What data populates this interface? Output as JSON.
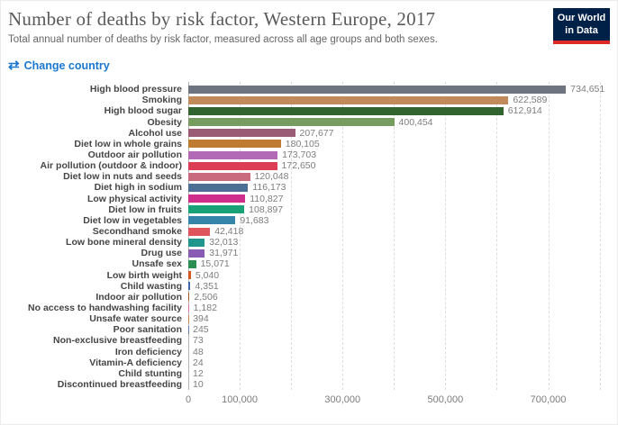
{
  "header": {
    "title": "Number of deaths by risk factor, Western Europe, 2017",
    "subtitle": "Total annual number of deaths by risk factor, measured across all age groups and both sexes.",
    "logo": {
      "line1": "Our World",
      "line2": "in Data",
      "bg_color": "#002147",
      "accent_color": "#dc2a27"
    }
  },
  "controls": {
    "change_country_label": "Change country",
    "swap_icon": "⇄",
    "link_color": "#1b77cf"
  },
  "chart_data": {
    "type": "bar",
    "orientation": "horizontal",
    "title": "Number of deaths by risk factor, Western Europe, 2017",
    "xlabel": "",
    "ylabel": "",
    "xlim": [
      0,
      820000
    ],
    "grid": true,
    "categories": [
      "High blood pressure",
      "Smoking",
      "High blood sugar",
      "Obesity",
      "Alcohol use",
      "Diet low in whole grains",
      "Outdoor air pollution",
      "Air pollution (outdoor & indoor)",
      "Diet low in nuts and seeds",
      "Diet high in sodium",
      "Low physical activity",
      "Diet low in fruits",
      "Diet low in vegetables",
      "Secondhand smoke",
      "Low bone mineral density",
      "Drug use",
      "Unsafe sex",
      "Low birth weight",
      "Child wasting",
      "Indoor air pollution",
      "No access to handwashing facility",
      "Unsafe water source",
      "Poor sanitation",
      "Non-exclusive breastfeeding",
      "Iron deficiency",
      "Vitamin-A deficiency",
      "Child stunting",
      "Discontinued breastfeeding"
    ],
    "values": [
      734651,
      622589,
      612914,
      400454,
      207677,
      180105,
      173703,
      172650,
      120048,
      116173,
      110827,
      108897,
      91683,
      42418,
      32013,
      31971,
      15071,
      5040,
      4351,
      2506,
      1182,
      394,
      245,
      73,
      48,
      24,
      12,
      10
    ],
    "value_labels": [
      "734,651",
      "622,589",
      "612,914",
      "400,454",
      "207,677",
      "180,105",
      "173,703",
      "172,650",
      "120,048",
      "116,173",
      "110,827",
      "108,897",
      "91,683",
      "42,418",
      "32,013",
      "31,971",
      "15,071",
      "5,040",
      "4,351",
      "2,506",
      "1,182",
      "394",
      "245",
      "73",
      "48",
      "24",
      "12",
      "10"
    ],
    "colors": [
      "#6e7581",
      "#c18a5a",
      "#31642f",
      "#769c5f",
      "#9a5b75",
      "#c07b33",
      "#b269b6",
      "#dc3f55",
      "#ca6a7e",
      "#4c6f96",
      "#d02e8c",
      "#19a178",
      "#3585ab",
      "#e0555b",
      "#21968c",
      "#8a5bb5",
      "#2d8e51",
      "#d3571f",
      "#4166af",
      "#b05a1e",
      "#e0719e",
      "#c97f3e",
      "#5b7cb8",
      "#d46a6a",
      "#8c8c8c",
      "#c78f36",
      "#5fa05c",
      "#b56ab0"
    ],
    "x_ticks": [
      {
        "value": 0,
        "label": "0"
      },
      {
        "value": 100000,
        "label": "100,000"
      },
      {
        "value": 200000,
        "label": ""
      },
      {
        "value": 300000,
        "label": "300,000"
      },
      {
        "value": 400000,
        "label": ""
      },
      {
        "value": 500000,
        "label": "500,000"
      },
      {
        "value": 600000,
        "label": ""
      },
      {
        "value": 700000,
        "label": "700,000"
      },
      {
        "value": 800000,
        "label": ""
      }
    ]
  }
}
